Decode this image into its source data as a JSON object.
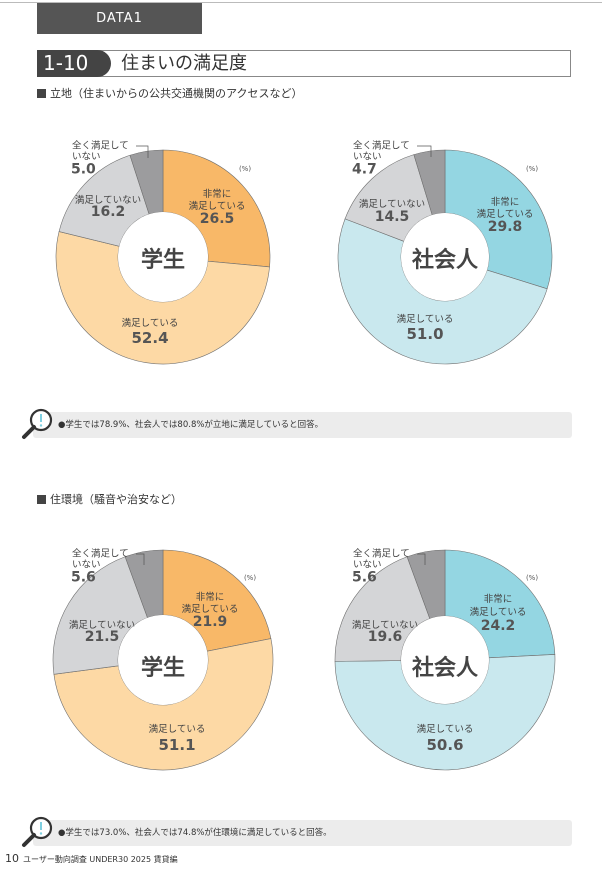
{
  "header": {
    "data_tab": "DATA1",
    "section_number": "1-10",
    "title": "住まいの満足度"
  },
  "sections": [
    {
      "heading": "立地（住まいからの公共交通機関のアクセスなど）",
      "note": "●学生では78.9%、社会人では80.8%が立地に満足していると回答。"
    },
    {
      "heading": "住環境（騒音や治安など）",
      "note": "●学生では73.0%、社会人では74.8%が住環境に満足していると回答。"
    }
  ],
  "labels": {
    "very_1": "非常に",
    "very_2": "満足している",
    "sat": "満足している",
    "notsat": "満足していない",
    "none_1": "全く満足して",
    "none_2": "いない",
    "unit": "(%)"
  },
  "colors": {
    "student": [
      "#f8b868",
      "#fdd9a5",
      "#d4d5d7",
      "#9c9c9e"
    ],
    "worker": [
      "#94d6e2",
      "#c9e8ee",
      "#d4d5d7",
      "#9c9c9e"
    ]
  },
  "chart_data": [
    {
      "type": "pie",
      "title": "学生",
      "section": "立地",
      "categories": [
        "非常に満足している",
        "満足している",
        "満足していない",
        "全く満足していない"
      ],
      "values": [
        26.5,
        52.4,
        16.2,
        5.0
      ],
      "palette": "student"
    },
    {
      "type": "pie",
      "title": "社会人",
      "section": "立地",
      "categories": [
        "非常に満足している",
        "満足している",
        "満足していない",
        "全く満足していない"
      ],
      "values": [
        29.8,
        51.0,
        14.5,
        4.7
      ],
      "palette": "worker"
    },
    {
      "type": "pie",
      "title": "学生",
      "section": "住環境",
      "categories": [
        "非常に満足している",
        "満足している",
        "満足していない",
        "全く満足していない"
      ],
      "values": [
        21.9,
        51.1,
        21.5,
        5.6
      ],
      "palette": "student"
    },
    {
      "type": "pie",
      "title": "社会人",
      "section": "住環境",
      "categories": [
        "非常に満足している",
        "満足している",
        "満足していない",
        "全く満足していない"
      ],
      "values": [
        24.2,
        50.6,
        19.6,
        5.6
      ],
      "palette": "worker"
    }
  ],
  "footer": {
    "page": "10",
    "text": "ユーザー動向調査 UNDER30 2025 賃貸編"
  }
}
